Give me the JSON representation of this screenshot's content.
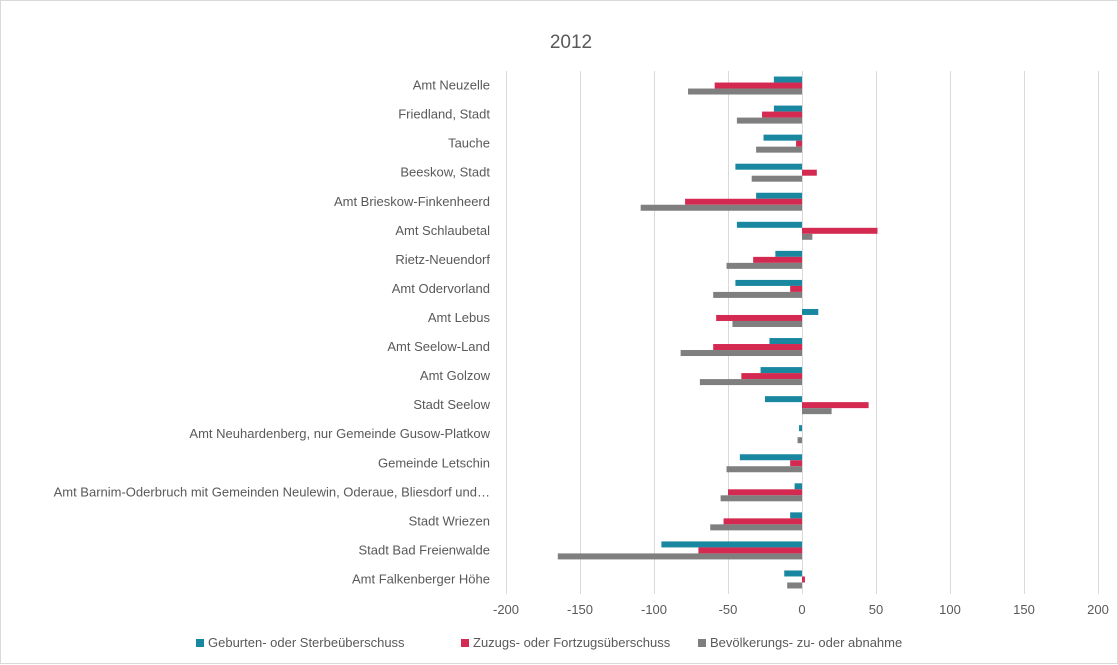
{
  "chart_data": {
    "type": "bar",
    "orientation": "horizontal",
    "title": "2012",
    "categories": [
      "Amt Neuzelle",
      "Friedland, Stadt",
      "Tauche",
      "Beeskow, Stadt",
      "Amt Brieskow-Finkenheerd",
      "Amt Schlaubetal",
      "Rietz-Neuendorf",
      "Amt Odervorland",
      "Amt Lebus",
      "Amt Seelow-Land",
      "Amt Golzow",
      "Stadt Seelow",
      "Amt Neuhardenberg, nur Gemeinde Gusow-Platkow",
      "Gemeinde Letschin",
      "Amt Barnim-Oderbruch mit Gemeinden Neulewin, Oderaue, Bliesdorf und…",
      "Stadt Wriezen",
      "Stadt Bad Freienwalde",
      "Amt Falkenberger Höhe"
    ],
    "series": [
      {
        "name": "Geburten- oder Sterbeüberschuss",
        "color": "#1a87a0",
        "values": [
          -19,
          -19,
          -26,
          -45,
          -31,
          -44,
          -18,
          -45,
          11,
          -22,
          -28,
          -25,
          -2,
          -42,
          -5,
          -8,
          -95,
          -12
        ]
      },
      {
        "name": "Zuzugs- oder Fortzugsüberschuss",
        "color": "#d42a51",
        "values": [
          -59,
          -27,
          -4,
          10,
          -79,
          51,
          -33,
          -8,
          -58,
          -60,
          -41,
          45,
          0,
          -8,
          -50,
          -53,
          -70,
          2
        ]
      },
      {
        "name": "Bevölkerungs- zu- oder abnahme",
        "color": "#7f7f7f",
        "values": [
          -77,
          -44,
          -31,
          -34,
          -109,
          7,
          -51,
          -60,
          -47,
          -82,
          -69,
          20,
          -3,
          -51,
          -55,
          -62,
          -165,
          -10
        ]
      }
    ],
    "x_ticks": [
      -200,
      -150,
      -100,
      -50,
      0,
      50,
      100,
      150,
      200
    ],
    "xlim": [
      -200,
      200
    ],
    "grid": true,
    "legend_position": "bottom"
  }
}
